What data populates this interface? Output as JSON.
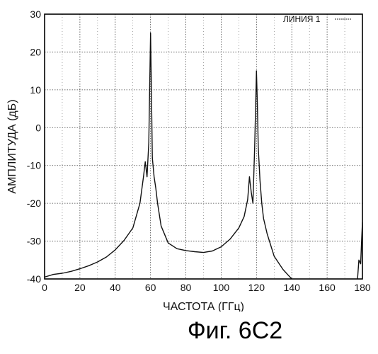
{
  "figure": {
    "caption": "Фиг. 6C2"
  },
  "chart_data": {
    "type": "line",
    "title": "",
    "xlabel": "ЧАСТОТА (ГГц)",
    "ylabel": "АМПЛИТУДА (дБ)",
    "xlim": [
      0,
      180
    ],
    "ylim": [
      -40,
      30
    ],
    "xticks": [
      0,
      20,
      40,
      60,
      80,
      100,
      120,
      140,
      160,
      180
    ],
    "yticks": [
      -40,
      -30,
      -20,
      -10,
      0,
      10,
      20,
      30
    ],
    "grid": true,
    "legend": {
      "placement": "top-right",
      "entries": [
        "ЛИНИЯ 1"
      ]
    },
    "series": [
      {
        "name": "ЛИНИЯ 1",
        "color": "#111111",
        "x": [
          0,
          5,
          10,
          15,
          20,
          25,
          30,
          35,
          40,
          45,
          50,
          54,
          56,
          57,
          58,
          59,
          60,
          60.5,
          61,
          62,
          63,
          64,
          66,
          70,
          75,
          80,
          85,
          90,
          95,
          100,
          105,
          110,
          113,
          115,
          116,
          117,
          118,
          119,
          120,
          120.5,
          121,
          122,
          123,
          124,
          126,
          128,
          130,
          135,
          138,
          140,
          141,
          142,
          145,
          150,
          155,
          160,
          165,
          170,
          175,
          177,
          178,
          179,
          179.5,
          180
        ],
        "y": [
          -39.5,
          -38.8,
          -38.5,
          -38,
          -37.3,
          -36.5,
          -35.5,
          -34.2,
          -32.3,
          -29.8,
          -26.5,
          -20,
          -13,
          -9,
          -13,
          -4,
          25,
          10,
          -8,
          -13,
          -16,
          -20,
          -26,
          -30.5,
          -32,
          -32.5,
          -32.8,
          -33,
          -32.6,
          -31.5,
          -29.5,
          -26.5,
          -23.5,
          -19,
          -13,
          -17,
          -20,
          -5,
          15,
          6,
          -5,
          -14,
          -20,
          -24,
          -28,
          -31,
          -34,
          -37.5,
          -39,
          -40,
          -41,
          -41.5,
          -41.8,
          -42,
          -42,
          -42,
          -42,
          -42,
          -42,
          -41.5,
          -35,
          -36,
          -30,
          -25
        ]
      }
    ]
  }
}
